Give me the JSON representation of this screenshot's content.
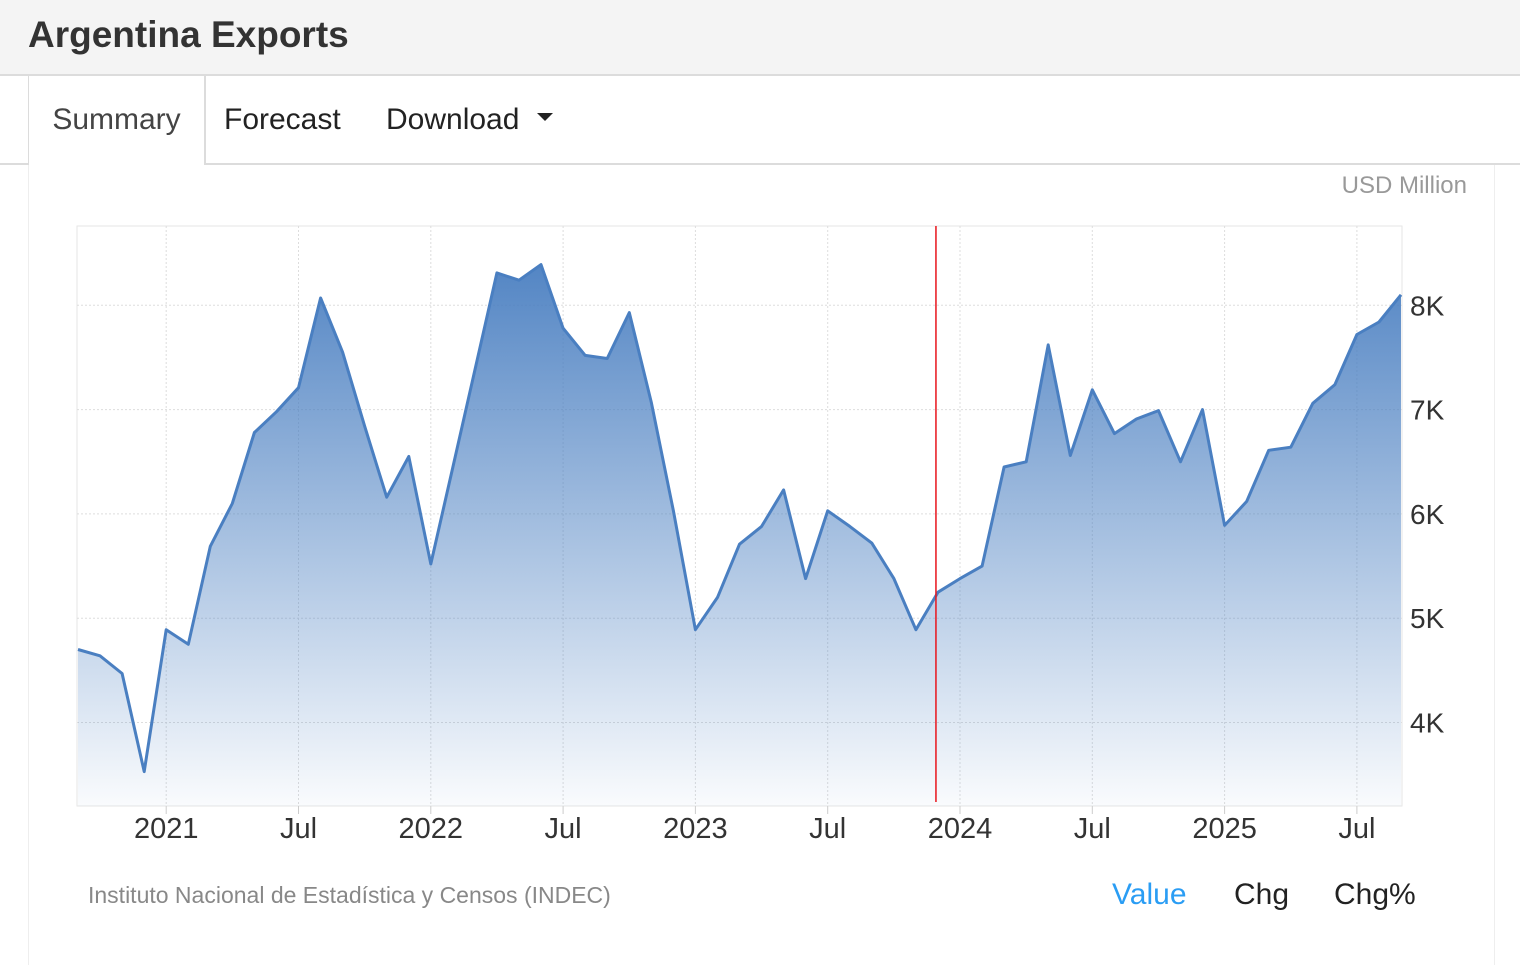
{
  "header": {
    "title": "Argentina Exports"
  },
  "tabs": [
    {
      "label": "Summary"
    },
    {
      "label": "Forecast"
    },
    {
      "label": "Download"
    }
  ],
  "unit_label": "USD Million",
  "source": "Instituto Nacional de Estadística y Censos (INDEC)",
  "modes": [
    {
      "label": "Value"
    },
    {
      "label": "Chg"
    },
    {
      "label": "Chg%"
    }
  ],
  "colors": {
    "line": "#4a7fc1",
    "fill_top": "#4a7fc1",
    "marker": "#e8141c",
    "active_mode": "#2a9df4"
  },
  "chart_data": {
    "type": "area",
    "title": "Argentina Exports",
    "ylabel": "USD Million",
    "ylim": [
      3200,
      8760
    ],
    "yticks": [
      4000,
      5000,
      6000,
      7000,
      8000
    ],
    "ytick_labels": [
      "4K",
      "5K",
      "6K",
      "7K",
      "8K"
    ],
    "xticks": [
      {
        "label": "2021",
        "month": 4
      },
      {
        "label": "Jul",
        "month": 10
      },
      {
        "label": "2022",
        "month": 16
      },
      {
        "label": "Jul",
        "month": 22
      },
      {
        "label": "2023",
        "month": 28
      },
      {
        "label": "Jul",
        "month": 34
      },
      {
        "label": "2024",
        "month": 40
      },
      {
        "label": "Jul",
        "month": 46
      },
      {
        "label": "2025",
        "month": 52
      },
      {
        "label": "Jul",
        "month": 58
      }
    ],
    "x_start": "2020-09",
    "x_end": "2025-09",
    "marker_month": 39,
    "grid": true,
    "values": [
      4700,
      4640,
      4470,
      3530,
      4890,
      4750,
      5690,
      6100,
      6780,
      6980,
      7210,
      8070,
      7550,
      6840,
      6160,
      6550,
      5520,
      6450,
      7380,
      8310,
      8240,
      8390,
      7780,
      7520,
      7490,
      7930,
      7070,
      6030,
      4890,
      5200,
      5710,
      5880,
      6230,
      5380,
      6030,
      5880,
      5720,
      5380,
      4890,
      5250,
      5380,
      5500,
      6450,
      6500,
      7620,
      6560,
      7190,
      6770,
      6910,
      6990,
      6500,
      7000,
      5890,
      6120,
      6610,
      6640,
      7060,
      7240,
      7720,
      7840,
      8100
    ]
  }
}
